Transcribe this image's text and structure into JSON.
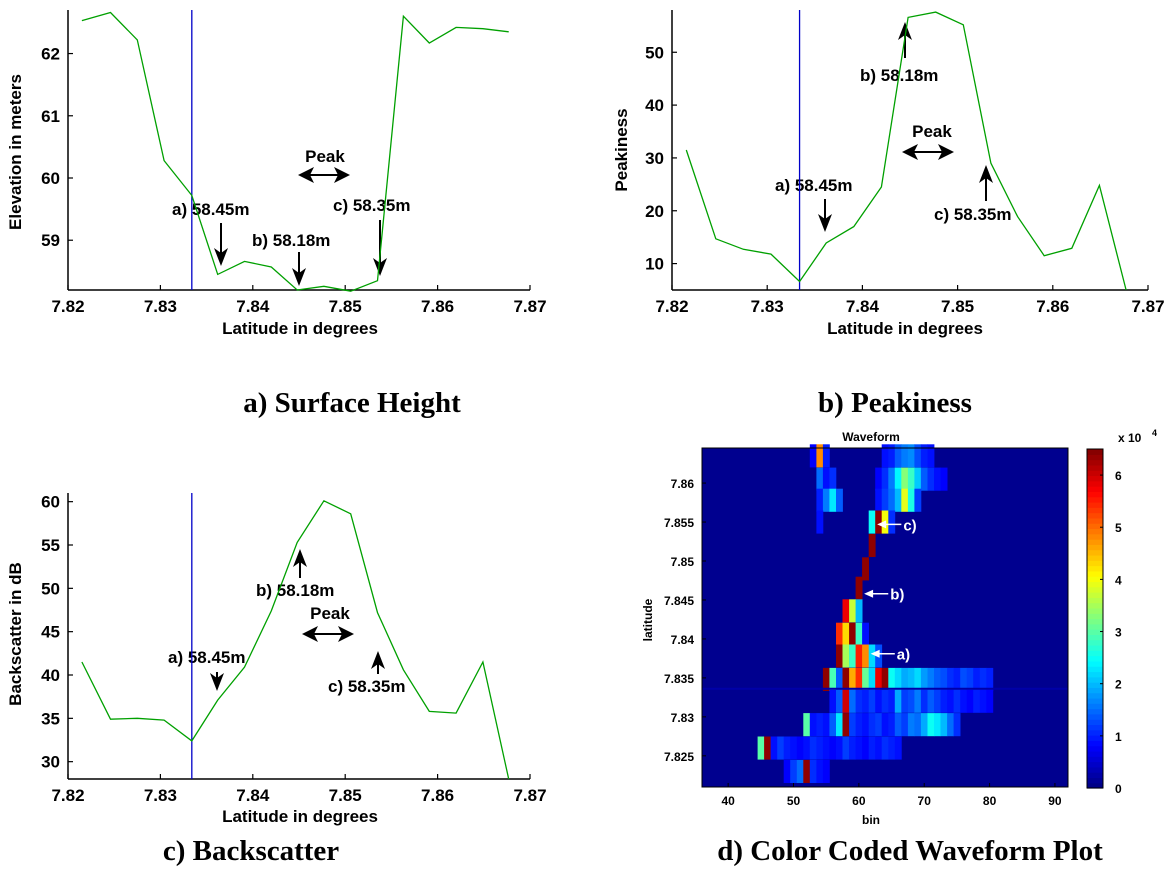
{
  "chart_data": [
    {
      "type": "line",
      "caption": "a) Surface Height",
      "xlabel": "Latitude in degrees",
      "ylabel": "Elevation in meters",
      "xlim": [
        7.82,
        7.87
      ],
      "ylim": [
        58.2,
        62.7
      ],
      "xticks": [
        "7.82",
        "7.83",
        "7.84",
        "7.85",
        "7.86",
        "7.87"
      ],
      "yticks": [
        "59",
        "60",
        "61",
        "62"
      ],
      "vline_x": 7.8334,
      "colors": {
        "line": "#00a000",
        "vline": "#0000c8"
      },
      "x": [
        7.8215,
        7.8246,
        7.8275,
        7.8304,
        7.8334,
        7.8362,
        7.8391,
        7.842,
        7.8448,
        7.8477,
        7.8506,
        7.8535,
        7.8563,
        7.8591,
        7.862,
        7.8649,
        7.8677
      ],
      "y": [
        62.53,
        62.66,
        62.22,
        60.28,
        59.72,
        58.45,
        58.66,
        58.57,
        58.2,
        58.26,
        58.18,
        58.35,
        62.6,
        62.17,
        62.42,
        62.4,
        62.35
      ],
      "annotations": [
        {
          "text": "Peak",
          "kind": "peak"
        },
        {
          "text": "a) 58.45m"
        },
        {
          "text": "b) 58.18m"
        },
        {
          "text": "c) 58.35m"
        }
      ]
    },
    {
      "type": "line",
      "caption": "b) Peakiness",
      "xlabel": "Latitude in degrees",
      "ylabel": "Peakiness",
      "xlim": [
        7.82,
        7.87
      ],
      "ylim": [
        5,
        58
      ],
      "xticks": [
        "7.82",
        "7.83",
        "7.84",
        "7.85",
        "7.86",
        "7.87"
      ],
      "yticks": [
        "10",
        "20",
        "30",
        "40",
        "50"
      ],
      "vline_x": 7.8334,
      "colors": {
        "line": "#00a000",
        "vline": "#0000c8"
      },
      "x": [
        7.8215,
        7.8246,
        7.8275,
        7.8304,
        7.8334,
        7.8362,
        7.8391,
        7.842,
        7.8448,
        7.8477,
        7.8506,
        7.8535,
        7.8563,
        7.8591,
        7.862,
        7.8649,
        7.8677
      ],
      "y": [
        31.5,
        14.7,
        12.7,
        11.8,
        6.6,
        13.9,
        17.0,
        24.5,
        56.6,
        57.6,
        55.2,
        29.0,
        18.9,
        11.5,
        12.9,
        24.8,
        5.0
      ],
      "annotations": [
        {
          "text": "Peak",
          "kind": "peak"
        },
        {
          "text": "a) 58.45m"
        },
        {
          "text": "b) 58.18m"
        },
        {
          "text": "c) 58.35m"
        }
      ]
    },
    {
      "type": "line",
      "caption": "c) Backscatter",
      "xlabel": "Latitude in degrees",
      "ylabel": "Backscatter in dB",
      "xlim": [
        7.82,
        7.87
      ],
      "ylim": [
        28,
        61
      ],
      "xticks": [
        "7.82",
        "7.83",
        "7.84",
        "7.85",
        "7.86",
        "7.87"
      ],
      "yticks": [
        "30",
        "35",
        "40",
        "45",
        "50",
        "55",
        "60"
      ],
      "vline_x": 7.8334,
      "colors": {
        "line": "#00a000",
        "vline": "#0000c8"
      },
      "x": [
        7.8215,
        7.8246,
        7.8275,
        7.8304,
        7.8334,
        7.8362,
        7.8391,
        7.842,
        7.8448,
        7.8477,
        7.8506,
        7.8535,
        7.8563,
        7.8591,
        7.862,
        7.8649,
        7.8677
      ],
      "y": [
        41.5,
        34.9,
        35.0,
        34.8,
        32.4,
        37.1,
        40.9,
        47.4,
        55.3,
        60.1,
        58.6,
        47.2,
        40.6,
        35.8,
        35.6,
        41.5,
        28.0
      ],
      "annotations": [
        {
          "text": "Peak",
          "kind": "peak"
        },
        {
          "text": "a) 58.45m"
        },
        {
          "text": "b) 58.18m"
        },
        {
          "text": "c) 58.35m"
        }
      ]
    },
    {
      "type": "heatmap",
      "caption": "d) Color Coded Waveform Plot",
      "title": "Waveform",
      "xlabel": "bin",
      "ylabel": "latitude",
      "xlim": [
        36,
        92
      ],
      "ylim": [
        7.821,
        7.8645
      ],
      "xticks": [
        "40",
        "50",
        "60",
        "70",
        "80",
        "90"
      ],
      "yticks": [
        "7.825",
        "7.83",
        "7.835",
        "7.84",
        "7.845",
        "7.85",
        "7.855",
        "7.86"
      ],
      "colorbar": {
        "min": 0,
        "max": 6.5,
        "ticks": [
          "0",
          "1",
          "2",
          "3",
          "4",
          "5",
          "6"
        ],
        "exponent_label": "x 10",
        "exponent": "4",
        "colormap": "jet"
      },
      "horizontal_line_lat": 7.8336,
      "rows": [
        {
          "lat": 7.8635,
          "cells": [
            [
              53,
              0.8
            ],
            [
              54,
              4.8
            ],
            [
              55,
              1.0
            ],
            [
              64,
              0.9
            ],
            [
              65,
              1.0
            ],
            [
              66,
              1.4
            ],
            [
              67,
              1.6
            ],
            [
              68,
              1.7
            ],
            [
              69,
              1.3
            ],
            [
              70,
              1.0
            ],
            [
              71,
              0.9
            ]
          ]
        },
        {
          "lat": 7.8605,
          "cells": [
            [
              54,
              1.5
            ],
            [
              55,
              0.9
            ],
            [
              56,
              1.1
            ],
            [
              63,
              0.8
            ],
            [
              64,
              1.1
            ],
            [
              65,
              1.6
            ],
            [
              66,
              2.4
            ],
            [
              67,
              3.3
            ],
            [
              68,
              2.8
            ],
            [
              69,
              2.1
            ],
            [
              70,
              1.4
            ],
            [
              71,
              1.1
            ],
            [
              72,
              0.9
            ],
            [
              73,
              0.8
            ]
          ]
        },
        {
          "lat": 7.8578,
          "cells": [
            [
              54,
              1.0
            ],
            [
              55,
              1.6
            ],
            [
              56,
              2.3
            ],
            [
              57,
              1.4
            ],
            [
              63,
              0.9
            ],
            [
              64,
              1.2
            ],
            [
              65,
              1.5
            ],
            [
              66,
              2.0
            ],
            [
              67,
              3.9
            ],
            [
              68,
              2.6
            ],
            [
              69,
              1.2
            ]
          ]
        },
        {
          "lat": 7.855,
          "cells": [
            [
              54,
              0.9
            ],
            [
              62,
              2.5
            ],
            [
              63,
              6.4
            ],
            [
              64,
              4.0
            ],
            [
              65,
              1.1
            ]
          ]
        },
        {
          "lat": 7.852,
          "cells": [
            [
              62,
              6.4
            ]
          ]
        },
        {
          "lat": 7.849,
          "cells": [
            [
              61,
              6.4
            ]
          ]
        },
        {
          "lat": 7.8465,
          "cells": [
            [
              60,
              6.4
            ]
          ]
        },
        {
          "lat": 7.8436,
          "cells": [
            [
              58,
              5.8
            ],
            [
              59,
              3.7
            ],
            [
              60,
              2.0
            ]
          ]
        },
        {
          "lat": 7.8406,
          "cells": [
            [
              57,
              5.4
            ],
            [
              58,
              4.3
            ],
            [
              59,
              6.4
            ],
            [
              60,
              2.8
            ],
            [
              61,
              0.9
            ]
          ]
        },
        {
          "lat": 7.8378,
          "cells": [
            [
              57,
              6.4
            ],
            [
              58,
              3.5
            ],
            [
              59,
              2.8
            ],
            [
              60,
              5.5
            ],
            [
              61,
              4.8
            ],
            [
              62,
              2.2
            ],
            [
              63,
              1.3
            ]
          ]
        },
        {
          "lat": 7.8348,
          "cells": [
            [
              55,
              6.4
            ],
            [
              56,
              2.9
            ],
            [
              57,
              1.4
            ],
            [
              58,
              6.4
            ],
            [
              59,
              4.6
            ],
            [
              60,
              5.4
            ],
            [
              61,
              3.1
            ],
            [
              62,
              2.2
            ],
            [
              63,
              5.8
            ],
            [
              64,
              6.4
            ],
            [
              65,
              2.5
            ],
            [
              66,
              2.2
            ],
            [
              67,
              1.9
            ],
            [
              68,
              2.0
            ],
            [
              69,
              2.2
            ],
            [
              70,
              1.8
            ],
            [
              71,
              1.6
            ],
            [
              72,
              1.4
            ],
            [
              73,
              1.3
            ],
            [
              74,
              1.1
            ],
            [
              75,
              1.0
            ],
            [
              76,
              1.3
            ],
            [
              77,
              1.2
            ],
            [
              78,
              1.0
            ],
            [
              79,
              1.1
            ],
            [
              80,
              1.0
            ]
          ]
        },
        {
          "lat": 7.832,
          "cells": [
            [
              56,
              0.9
            ],
            [
              57,
              1.4
            ],
            [
              58,
              6.0
            ],
            [
              59,
              1.5
            ],
            [
              60,
              1.1
            ],
            [
              61,
              1.0
            ],
            [
              62,
              1.2
            ],
            [
              63,
              0.9
            ],
            [
              64,
              1.1
            ],
            [
              65,
              1.0
            ],
            [
              66,
              1.9
            ],
            [
              67,
              1.2
            ],
            [
              68,
              1.3
            ],
            [
              69,
              1.6
            ],
            [
              70,
              1.1
            ],
            [
              71,
              1.4
            ],
            [
              72,
              1.2
            ],
            [
              73,
              1.0
            ],
            [
              74,
              0.9
            ],
            [
              75,
              1.1
            ],
            [
              76,
              0.9
            ],
            [
              77,
              0.8
            ],
            [
              78,
              1.0
            ],
            [
              79,
              0.9
            ],
            [
              80,
              0.8
            ]
          ]
        },
        {
          "lat": 7.829,
          "cells": [
            [
              52,
              3.0
            ],
            [
              53,
              0.9
            ],
            [
              54,
              1.0
            ],
            [
              55,
              0.9
            ],
            [
              56,
              1.4
            ],
            [
              57,
              2.3
            ],
            [
              58,
              6.4
            ],
            [
              59,
              1.2
            ],
            [
              60,
              1.0
            ],
            [
              61,
              0.9
            ],
            [
              62,
              1.1
            ],
            [
              63,
              1.2
            ],
            [
              64,
              0.9
            ],
            [
              65,
              1.0
            ],
            [
              66,
              1.4
            ],
            [
              67,
              1.2
            ],
            [
              68,
              1.6
            ],
            [
              69,
              1.5
            ],
            [
              70,
              1.9
            ],
            [
              71,
              2.5
            ],
            [
              72,
              2.3
            ],
            [
              73,
              2.0
            ],
            [
              74,
              1.5
            ],
            [
              75,
              1.1
            ]
          ]
        },
        {
          "lat": 7.826,
          "cells": [
            [
              45,
              3.0
            ],
            [
              46,
              6.4
            ],
            [
              47,
              0.9
            ],
            [
              48,
              1.2
            ],
            [
              49,
              1.0
            ],
            [
              50,
              0.9
            ],
            [
              51,
              0.8
            ],
            [
              52,
              0.9
            ],
            [
              53,
              1.1
            ],
            [
              54,
              1.0
            ],
            [
              55,
              0.9
            ],
            [
              56,
              0.8
            ],
            [
              57,
              0.9
            ],
            [
              58,
              1.2
            ],
            [
              59,
              1.0
            ],
            [
              60,
              0.9
            ],
            [
              61,
              0.8
            ],
            [
              62,
              1.0
            ],
            [
              63,
              0.9
            ],
            [
              64,
              1.1
            ],
            [
              65,
              1.0
            ],
            [
              66,
              0.9
            ]
          ]
        },
        {
          "lat": 7.823,
          "cells": [
            [
              49,
              0.8
            ],
            [
              50,
              1.2
            ],
            [
              51,
              1.5
            ],
            [
              52,
              6.4
            ],
            [
              53,
              1.1
            ],
            [
              54,
              0.9
            ],
            [
              55,
              0.8
            ]
          ]
        }
      ],
      "annotations": [
        {
          "text": "c)"
        },
        {
          "text": "b)"
        },
        {
          "text": "a)"
        }
      ]
    }
  ]
}
